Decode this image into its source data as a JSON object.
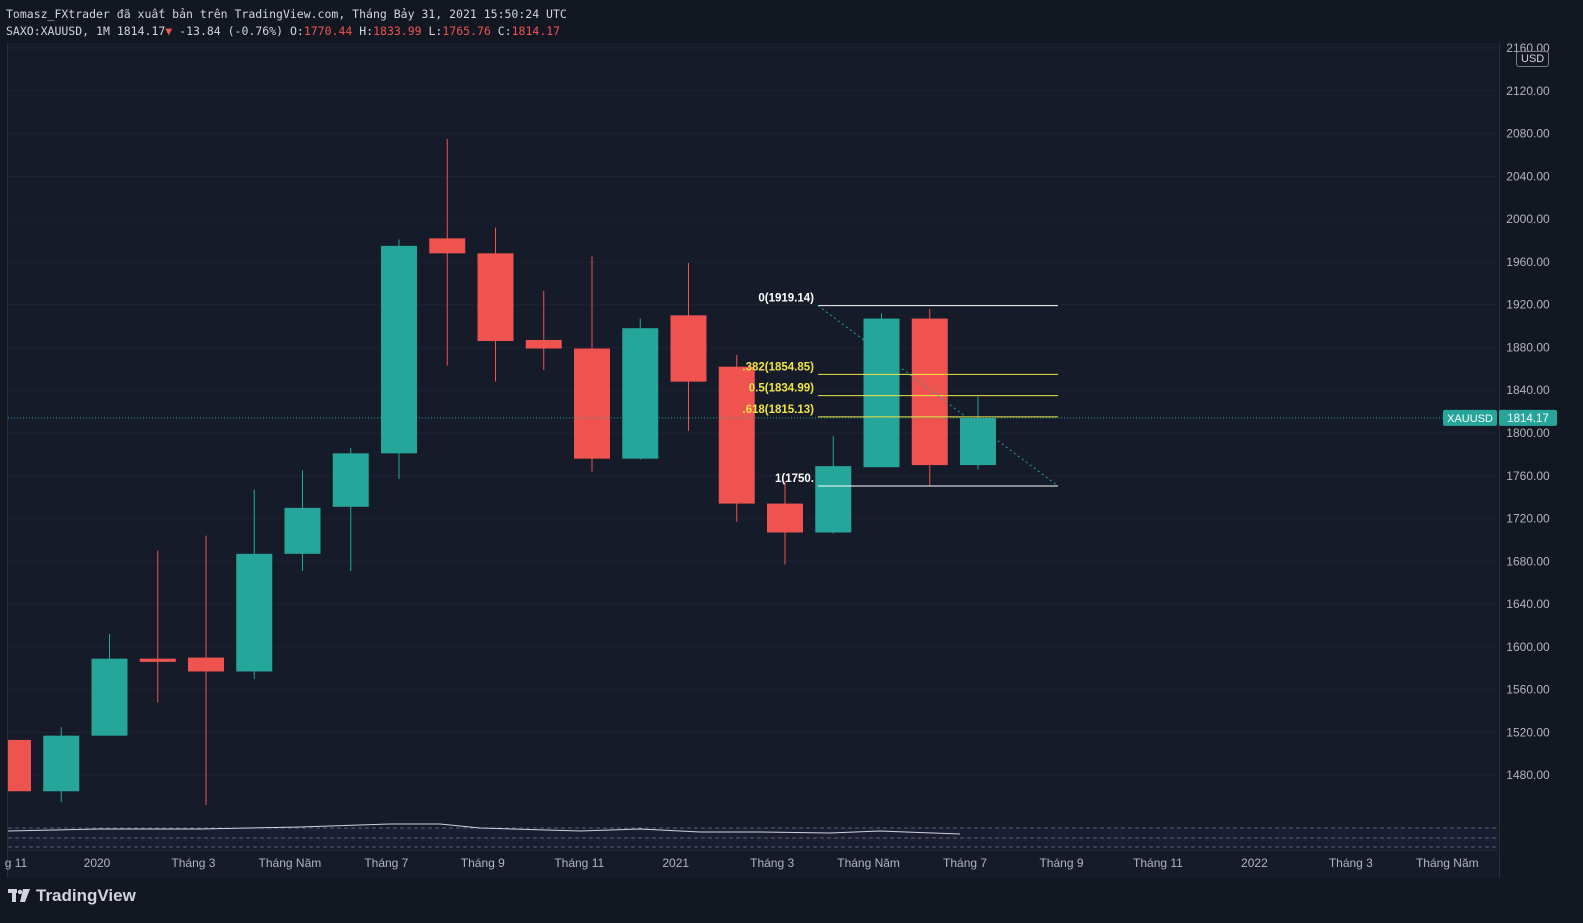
{
  "header": {
    "publish_info": "Tomasz_FXtrader đã xuất bản trên TradingView.com, Tháng Bảy 31, 2021 15:50:24 UTC",
    "symbol": "SAXO:XAUUSD",
    "interval": "1M",
    "last": "1814.17",
    "change": "-13.84 (-0.76%)",
    "open_label": "O:",
    "open": "1770.44",
    "high_label": "H:",
    "high": "1833.99",
    "low_label": "L:",
    "low": "1765.76",
    "close_label": "C:",
    "close": "1814.17"
  },
  "price_axis": {
    "currency": "USD"
  },
  "price_tag": {
    "symbol": "XAUUSD",
    "value": "1814.17"
  },
  "brand": {
    "name": "TradingView"
  },
  "colors": {
    "up": "#26a69a",
    "down": "#ef5350",
    "background": "#161b2a",
    "fib_line": "#ffffff",
    "fib_mid": "#f0e442",
    "last_price": "#26a69a"
  },
  "chart_data": {
    "type": "candlestick",
    "interval": "1M",
    "ylim": [
      1440,
      2160
    ],
    "yticks": [
      1480,
      1520,
      1560,
      1600,
      1640,
      1680,
      1720,
      1760,
      1800,
      1840,
      1880,
      1920,
      1960,
      2000,
      2040,
      2080,
      2120,
      2160
    ],
    "x_tick_labels": [
      "g 11",
      "2020",
      "Tháng 3",
      "Tháng Năm",
      "Tháng 7",
      "Tháng 9",
      "Tháng 11",
      "2021",
      "Tháng 3",
      "Tháng Năm",
      "Tháng 7",
      "Tháng 9",
      "Tháng 11",
      "2022",
      "Tháng 3",
      "Tháng Năm"
    ],
    "candles": [
      {
        "o": 1513,
        "h": 1513,
        "l": 1465,
        "c": 1465
      },
      {
        "o": 1465,
        "h": 1525,
        "l": 1455,
        "c": 1517
      },
      {
        "o": 1517,
        "h": 1612,
        "l": 1517,
        "c": 1589
      },
      {
        "o": 1589,
        "h": 1690,
        "l": 1548,
        "c": 1586
      },
      {
        "o": 1590,
        "h": 1704,
        "l": 1452,
        "c": 1577
      },
      {
        "o": 1577,
        "h": 1747,
        "l": 1570,
        "c": 1687
      },
      {
        "o": 1687,
        "h": 1765,
        "l": 1671,
        "c": 1730
      },
      {
        "o": 1731,
        "h": 1786,
        "l": 1671,
        "c": 1781
      },
      {
        "o": 1781,
        "h": 1981,
        "l": 1757,
        "c": 1975
      },
      {
        "o": 1982,
        "h": 2075,
        "l": 1863,
        "c": 1968
      },
      {
        "o": 1968,
        "h": 1992,
        "l": 1848,
        "c": 1886
      },
      {
        "o": 1887,
        "h": 1933,
        "l": 1859,
        "c": 1879
      },
      {
        "o": 1879,
        "h": 1965,
        "l": 1764,
        "c": 1776
      },
      {
        "o": 1776,
        "h": 1907,
        "l": 1775,
        "c": 1898
      },
      {
        "o": 1910,
        "h": 1959,
        "l": 1802,
        "c": 1848
      },
      {
        "o": 1862,
        "h": 1873,
        "l": 1717,
        "c": 1734
      },
      {
        "o": 1734,
        "h": 1755,
        "l": 1677,
        "c": 1707
      },
      {
        "o": 1707,
        "h": 1797,
        "l": 1706,
        "c": 1769
      },
      {
        "o": 1768,
        "h": 1912,
        "l": 1768,
        "c": 1907
      },
      {
        "o": 1907,
        "h": 1916,
        "l": 1751,
        "c": 1770
      },
      {
        "o": 1770,
        "h": 1834,
        "l": 1766,
        "c": 1814
      }
    ],
    "fibonacci": [
      {
        "label": "0(1919.14)",
        "level": 1919.14
      },
      {
        "label": ".382(1854.85)",
        "level": 1854.85
      },
      {
        "label": "0.5(1834.99)",
        "level": 1834.99
      },
      {
        "label": ".618(1815.13)",
        "level": 1815.13
      },
      {
        "label": "1(1750.",
        "level": 1750.5
      }
    ],
    "last_price": 1814.17
  }
}
